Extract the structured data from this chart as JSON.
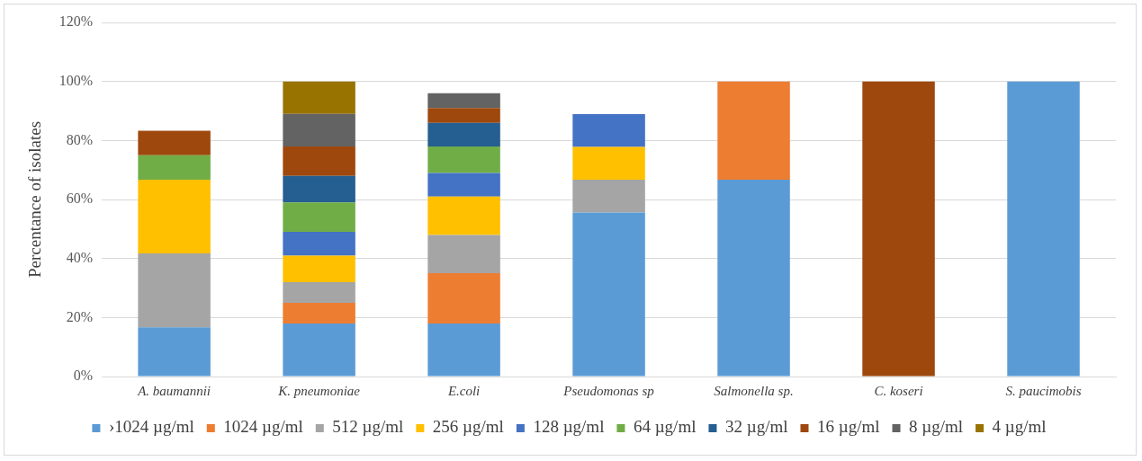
{
  "chart_data": {
    "type": "bar",
    "stacked": true,
    "ylabel": "Percentance of isolates",
    "categories": [
      "A. baumannii",
      "K. pneumoniae",
      "E.coli",
      "Pseudomonas sp",
      "Salmonella sp.",
      "C. koseri",
      "S. paucimobis"
    ],
    "ylim": [
      0,
      120
    ],
    "yticks": [
      {
        "value": 0,
        "label": "0%"
      },
      {
        "value": 20,
        "label": "20%"
      },
      {
        "value": 40,
        "label": "40%"
      },
      {
        "value": 60,
        "label": "60%"
      },
      {
        "value": 80,
        "label": "80%"
      },
      {
        "value": 100,
        "label": "100%"
      },
      {
        "value": 120,
        "label": "120%"
      }
    ],
    "grid": "y",
    "legend": "bottom",
    "series": [
      {
        "name": "›1024 µg/ml",
        "color": "#5b9bd5",
        "values": [
          16.7,
          18,
          18,
          55.6,
          66.7,
          null,
          100
        ]
      },
      {
        "name": "1024 µg/ml",
        "color": "#ed7d31",
        "values": [
          null,
          7,
          17,
          null,
          33.3,
          null,
          null
        ]
      },
      {
        "name": "512 µg/ml",
        "color": "#a5a5a5",
        "values": [
          25,
          7,
          13,
          11.1,
          null,
          null,
          null
        ]
      },
      {
        "name": "256 µg/ml",
        "color": "#ffc000",
        "values": [
          25,
          9,
          13,
          11.1,
          null,
          null,
          null
        ]
      },
      {
        "name": "128 µg/ml",
        "color": "#4472c4",
        "values": [
          null,
          8,
          8,
          11.1,
          null,
          null,
          null
        ]
      },
      {
        "name": "64 µg/ml",
        "color": "#70ad47",
        "values": [
          8.3,
          10,
          9,
          null,
          null,
          null,
          null
        ]
      },
      {
        "name": "32 µg/ml",
        "color": "#255e91",
        "values": [
          null,
          9,
          8,
          null,
          null,
          null,
          null
        ]
      },
      {
        "name": "16 µg/ml",
        "color": "#9e480e",
        "values": [
          8.3,
          10,
          5,
          null,
          null,
          100,
          null
        ]
      },
      {
        "name": "8 µg/ml",
        "color": "#636363",
        "values": [
          null,
          11,
          5,
          null,
          null,
          null,
          null
        ]
      },
      {
        "name": "4 µg/ml",
        "color": "#997300",
        "values": [
          null,
          11,
          null,
          null,
          null,
          null,
          null
        ]
      }
    ]
  }
}
